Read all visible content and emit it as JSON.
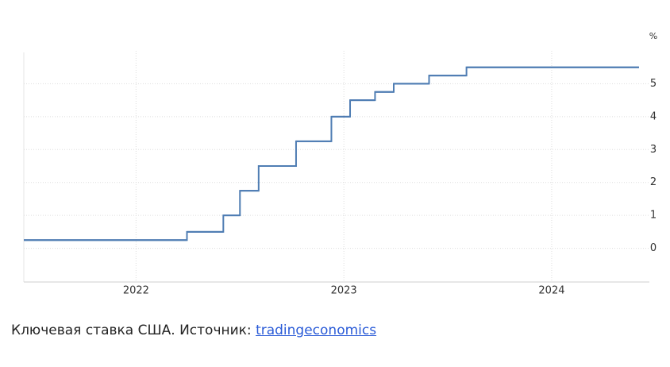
{
  "chart_data": {
    "type": "line",
    "step": "after",
    "ylabel": "%",
    "x": [
      2021.46,
      2022.245,
      2022.42,
      2022.5,
      2022.59,
      2022.77,
      2022.94,
      2023.03,
      2023.15,
      2023.24,
      2023.41,
      2023.59,
      2024.42
    ],
    "series": [
      {
        "color": "#4f7db3",
        "values": [
          0.25,
          0.5,
          1,
          1.75,
          2.5,
          3.25,
          4,
          4.5,
          4.75,
          5,
          5.25,
          5.5,
          5.5
        ]
      }
    ],
    "xlim": [
      2021.46,
      2024.47
    ],
    "xticks": [
      2022,
      2023,
      2024
    ],
    "ylim": [
      -1,
      6
    ],
    "yticks": [
      0,
      1,
      2,
      3,
      4,
      5
    ],
    "grid": true
  },
  "caption": {
    "text": "Ключевая ставка США. Источник: ",
    "link": "tradingeconomics"
  }
}
